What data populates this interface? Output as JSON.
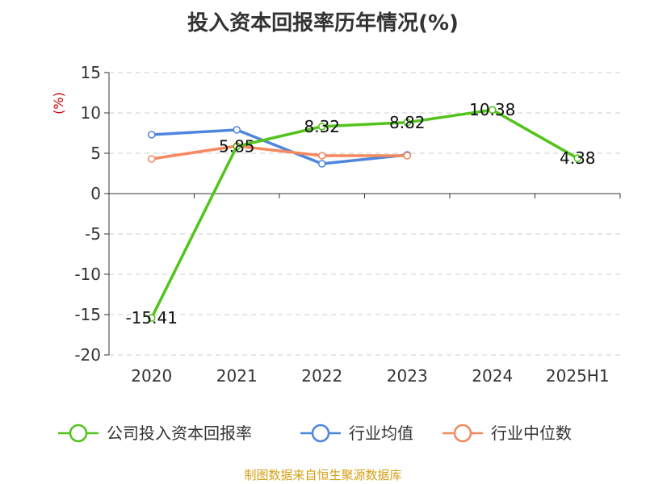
{
  "title": "投入资本回报率历年情况(%)",
  "source": "制图数据来自恒生聚源数据库",
  "chart_data": {
    "type": "line",
    "title": "投入资本回报率历年情况(%)",
    "ylabel": "(%)",
    "xlabel": "",
    "categories": [
      "2020",
      "2021",
      "2022",
      "2023",
      "2024",
      "2025H1"
    ],
    "yticks": [
      "15",
      "10",
      "5",
      "0",
      "-5",
      "-10",
      "-15",
      "-20"
    ],
    "ylim": [
      -20,
      15
    ],
    "grid": true,
    "legend_position": "bottom",
    "series": [
      {
        "name": "公司投入资本回报率",
        "color": "#52c41a",
        "values": [
          -15.41,
          5.85,
          8.32,
          8.82,
          10.38,
          4.38
        ],
        "labels": [
          "-15.41",
          "5.85",
          "8.32",
          "8.82",
          "10.38",
          "4.38"
        ]
      },
      {
        "name": "行业均值",
        "color": "#4f86dd",
        "values": [
          7.3,
          7.9,
          3.7,
          4.8,
          null,
          null
        ]
      },
      {
        "name": "行业中位数",
        "color": "#f4895f",
        "values": [
          4.3,
          5.9,
          4.7,
          4.7,
          null,
          null
        ]
      }
    ]
  }
}
